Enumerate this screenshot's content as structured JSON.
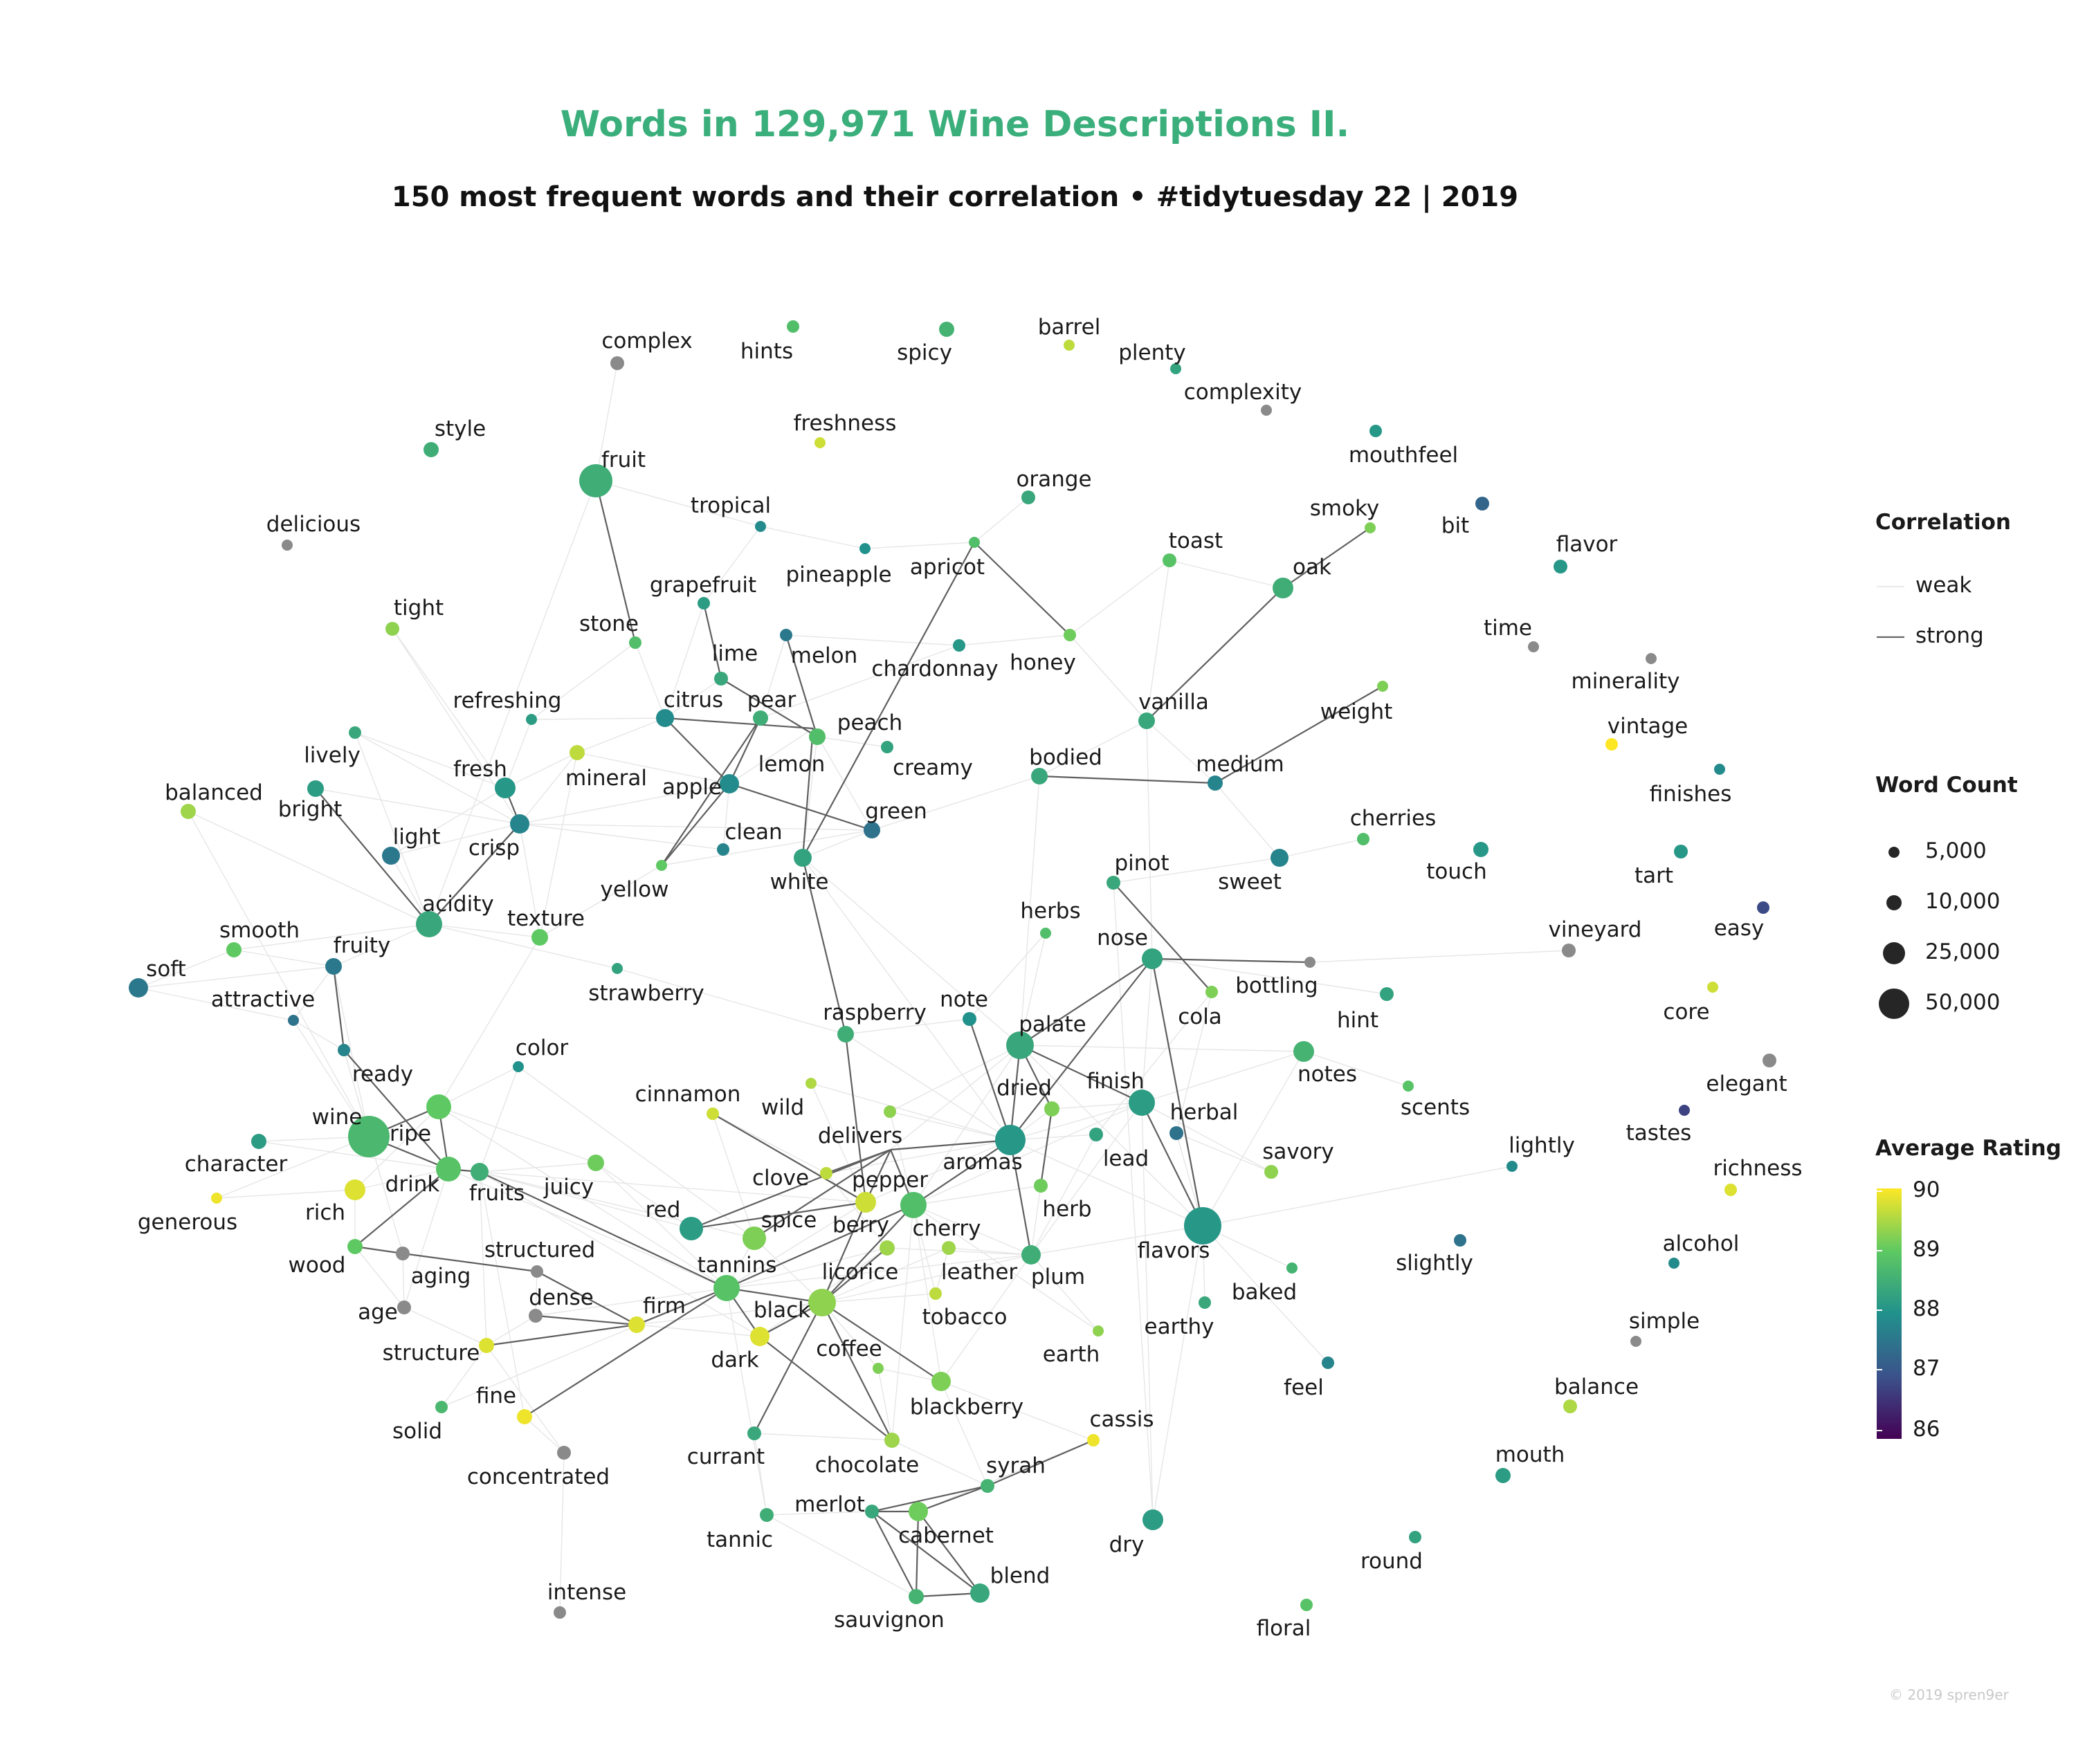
{
  "title": "Words in 129,971 Wine Descriptions II.",
  "subtitle": "150 most frequent words and their correlation  •  #tidytuesday 22 | 2019",
  "credit": "© 2019 spren9er",
  "legend": {
    "correlation_title": "Correlation",
    "correlation_items": [
      "weak",
      "strong"
    ],
    "count_title": "Word Count",
    "count_items": [
      5000,
      10000,
      25000,
      50000
    ],
    "count_labels": [
      "5,000",
      "10,000",
      "25,000",
      "50,000"
    ],
    "rating_title": "Average Rating",
    "rating_ticks": [
      "90",
      "89",
      "88",
      "87",
      "86"
    ],
    "rating_range": [
      86,
      90
    ]
  },
  "network": {
    "nodes": [
      {
        "word": "complex",
        "rating": null
      },
      {
        "word": "hints",
        "rating": 88.8
      },
      {
        "word": "spicy",
        "rating": 88.6
      },
      {
        "word": "barrel",
        "rating": 89.6
      },
      {
        "word": "plenty",
        "rating": 88.3
      },
      {
        "word": "complexity",
        "rating": null
      },
      {
        "word": "style",
        "rating": 88.5
      },
      {
        "word": "freshness",
        "rating": 89.7
      },
      {
        "word": "mouthfeel",
        "rating": 88.1
      },
      {
        "word": "fruit",
        "rating": 88.5
      },
      {
        "word": "orange",
        "rating": 88.4
      },
      {
        "word": "delicious",
        "rating": null
      },
      {
        "word": "tropical",
        "rating": 87.9
      },
      {
        "word": "smoky",
        "rating": 89.2
      },
      {
        "word": "bit",
        "rating": 87.3
      },
      {
        "word": "pineapple",
        "rating": 88.0
      },
      {
        "word": "apricot",
        "rating": 88.8
      },
      {
        "word": "toast",
        "rating": 88.9
      },
      {
        "word": "oak",
        "rating": 88.5
      },
      {
        "word": "flavor",
        "rating": 88.1
      },
      {
        "word": "grapefruit",
        "rating": 88.2
      },
      {
        "word": "tight",
        "rating": 89.3
      },
      {
        "word": "stone",
        "rating": 88.8
      },
      {
        "word": "melon",
        "rating": 87.6
      },
      {
        "word": "lime",
        "rating": 88.4
      },
      {
        "word": "chardonnay",
        "rating": 88.1
      },
      {
        "word": "honey",
        "rating": 89.1
      },
      {
        "word": "time",
        "rating": null
      },
      {
        "word": "minerality",
        "rating": null
      },
      {
        "word": "refreshing",
        "rating": 88.2
      },
      {
        "word": "citrus",
        "rating": 87.9
      },
      {
        "word": "pear",
        "rating": 88.5
      },
      {
        "word": "vanilla",
        "rating": 88.4
      },
      {
        "word": "weight",
        "rating": 89.2
      },
      {
        "word": "lively",
        "rating": 88.4
      },
      {
        "word": "mineral",
        "rating": 89.6
      },
      {
        "word": "peach",
        "rating": 88.8
      },
      {
        "word": "lemon",
        "rating": 88.3
      },
      {
        "word": "creamy",
        "rating": 88.3
      },
      {
        "word": "vintage",
        "rating": 90.0
      },
      {
        "word": "fresh",
        "rating": 88.1
      },
      {
        "word": "apple",
        "rating": 87.9
      },
      {
        "word": "bodied",
        "rating": 88.4
      },
      {
        "word": "medium",
        "rating": 87.8
      },
      {
        "word": "finishes",
        "rating": 87.9
      },
      {
        "word": "balanced",
        "rating": 89.4
      },
      {
        "word": "bright",
        "rating": 88.2
      },
      {
        "word": "crisp",
        "rating": 87.8
      },
      {
        "word": "green",
        "rating": 87.5
      },
      {
        "word": "cherries",
        "rating": 88.8
      },
      {
        "word": "clean",
        "rating": 87.8
      },
      {
        "word": "light",
        "rating": 87.6
      },
      {
        "word": "white",
        "rating": 88.3
      },
      {
        "word": "touch",
        "rating": 88.1
      },
      {
        "word": "tart",
        "rating": 88.1
      },
      {
        "word": "sweet",
        "rating": 87.8
      },
      {
        "word": "pinot",
        "rating": 88.4
      },
      {
        "word": "easy",
        "rating": 86.9
      },
      {
        "word": "yellow",
        "rating": 89.0
      },
      {
        "word": "acidity",
        "rating": 88.4
      },
      {
        "word": "texture",
        "rating": 89.0
      },
      {
        "word": "herbs",
        "rating": 88.8
      },
      {
        "word": "smooth",
        "rating": 89.0
      },
      {
        "word": "vineyard",
        "rating": null
      },
      {
        "word": "fruity",
        "rating": 87.6
      },
      {
        "word": "soft",
        "rating": 87.6
      },
      {
        "word": "nose",
        "rating": 88.3
      },
      {
        "word": "strawberry",
        "rating": 88.3
      },
      {
        "word": "bottling",
        "rating": null
      },
      {
        "word": "cola",
        "rating": 89.2
      },
      {
        "word": "core",
        "rating": 89.7
      },
      {
        "word": "attractive",
        "rating": 87.5
      },
      {
        "word": "raspberry",
        "rating": 88.5
      },
      {
        "word": "note",
        "rating": 88.0
      },
      {
        "word": "palate",
        "rating": 88.4
      },
      {
        "word": "hint",
        "rating": 88.3
      },
      {
        "word": "ready",
        "rating": 87.8
      },
      {
        "word": "color",
        "rating": 88.0
      },
      {
        "word": "notes",
        "rating": 88.6
      },
      {
        "word": "scents",
        "rating": 88.9
      },
      {
        "word": "elegant",
        "rating": null
      },
      {
        "word": "dried",
        "rating": 89.2
      },
      {
        "word": "finish",
        "rating": 88.2
      },
      {
        "word": "wild",
        "rating": 89.5
      },
      {
        "word": "cinnamon",
        "rating": 89.7
      },
      {
        "word": "herbal",
        "rating": 87.5
      },
      {
        "word": "tastes",
        "rating": 86.8
      },
      {
        "word": "wine",
        "rating": 88.7
      },
      {
        "word": "ripe",
        "rating": 89.0
      },
      {
        "word": "delivers",
        "rating": 89.3
      },
      {
        "word": "character",
        "rating": 88.2
      },
      {
        "word": "aromas",
        "rating": 88.1
      },
      {
        "word": "lead",
        "rating": 88.3
      },
      {
        "word": "lightly",
        "rating": 87.9
      },
      {
        "word": "richness",
        "rating": 89.8
      },
      {
        "word": "savory",
        "rating": 89.3
      },
      {
        "word": "generous",
        "rating": 89.9
      },
      {
        "word": "rich",
        "rating": 89.8
      },
      {
        "word": "drink",
        "rating": 88.9
      },
      {
        "word": "fruits",
        "rating": 88.5
      },
      {
        "word": "juicy",
        "rating": 89.1
      },
      {
        "word": "clove",
        "rating": 89.6
      },
      {
        "word": "pepper",
        "rating": 88.2
      },
      {
        "word": "herb",
        "rating": 89.1
      },
      {
        "word": "red",
        "rating": 88.2
      },
      {
        "word": "spice",
        "rating": 89.2
      },
      {
        "word": "berry",
        "rating": 89.7
      },
      {
        "word": "cherry",
        "rating": 88.8
      },
      {
        "word": "flavors",
        "rating": 88.1
      },
      {
        "word": "slightly",
        "rating": 87.5
      },
      {
        "word": "alcohol",
        "rating": 87.9
      },
      {
        "word": "wood",
        "rating": 89.0
      },
      {
        "word": "structured",
        "rating": null
      },
      {
        "word": "aging",
        "rating": null
      },
      {
        "word": "tannins",
        "rating": 88.9
      },
      {
        "word": "licorice",
        "rating": 89.4
      },
      {
        "word": "leather",
        "rating": 89.4
      },
      {
        "word": "plum",
        "rating": 88.5
      },
      {
        "word": "baked",
        "rating": 88.6
      },
      {
        "word": "dense",
        "rating": null
      },
      {
        "word": "firm",
        "rating": 89.8
      },
      {
        "word": "black",
        "rating": 89.3
      },
      {
        "word": "tobacco",
        "rating": 89.6
      },
      {
        "word": "earthy",
        "rating": 88.4
      },
      {
        "word": "age",
        "rating": null
      },
      {
        "word": "structure",
        "rating": 89.8
      },
      {
        "word": "dark",
        "rating": 89.8
      },
      {
        "word": "coffee",
        "rating": 89.2
      },
      {
        "word": "earth",
        "rating": 89.3
      },
      {
        "word": "simple",
        "rating": null
      },
      {
        "word": "feel",
        "rating": 87.8
      },
      {
        "word": "fine",
        "rating": 89.9
      },
      {
        "word": "blackberry",
        "rating": 89.2
      },
      {
        "word": "balance",
        "rating": 89.5
      },
      {
        "word": "solid",
        "rating": 88.7
      },
      {
        "word": "cassis",
        "rating": 89.9
      },
      {
        "word": "concentrated",
        "rating": null
      },
      {
        "word": "currant",
        "rating": 88.4
      },
      {
        "word": "chocolate",
        "rating": 89.4
      },
      {
        "word": "mouth",
        "rating": 88.2
      },
      {
        "word": "syrah",
        "rating": 88.6
      },
      {
        "word": "merlot",
        "rating": 88.4
      },
      {
        "word": "tannic",
        "rating": 88.5
      },
      {
        "word": "cabernet",
        "rating": 89.1
      },
      {
        "word": "dry",
        "rating": 88.2
      },
      {
        "word": "blend",
        "rating": 88.4
      },
      {
        "word": "round",
        "rating": 88.3
      },
      {
        "word": "intense",
        "rating": null
      },
      {
        "word": "floral",
        "rating": 88.9
      },
      {
        "word": "sauvignon",
        "rating": 88.6
      }
    ]
  }
}
